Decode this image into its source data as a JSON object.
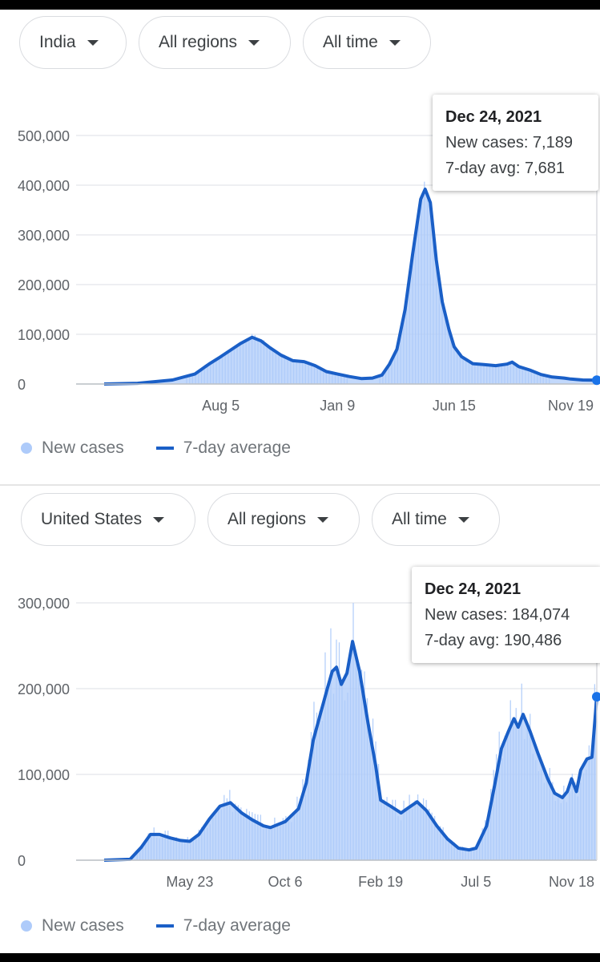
{
  "charts": [
    {
      "filters": {
        "country": "India",
        "region": "All regions",
        "period": "All time"
      },
      "legend": {
        "bars": "New cases",
        "line": "7-day average"
      },
      "tooltip": {
        "date": "Dec 24, 2021",
        "new_cases": "New cases: 7,189",
        "avg": "7-day avg: 7,681"
      }
    },
    {
      "filters": {
        "country": "United States",
        "region": "All regions",
        "period": "All time"
      },
      "legend": {
        "bars": "New cases",
        "line": "7-day average"
      },
      "tooltip": {
        "date": "Dec 24, 2021",
        "new_cases": "New cases: 184,074",
        "avg": "7-day avg: 190,486"
      }
    }
  ],
  "chart_data": [
    {
      "type": "area",
      "title": "",
      "xlabel": "",
      "ylabel": "",
      "ylim": [
        0,
        500000
      ],
      "yticks": [
        0,
        100000,
        200000,
        300000,
        400000,
        500000
      ],
      "ytick_labels": [
        "0",
        "100,000",
        "200,000",
        "300,000",
        "400,000",
        "500,000"
      ],
      "xticks": [
        "2020-08-05",
        "2021-01-09",
        "2021-06-15",
        "2021-11-19"
      ],
      "xtick_labels": [
        "Aug 5",
        "Jan 9",
        "Jun 15",
        "Nov 19"
      ],
      "xlim": [
        "2020-03-01",
        "2021-12-24"
      ],
      "series": [
        {
          "name": "7-day average",
          "color": "#1a5fc7",
          "x": [
            "2020-03-01",
            "2020-04-15",
            "2020-06-01",
            "2020-07-01",
            "2020-07-20",
            "2020-08-05",
            "2020-08-20",
            "2020-09-01",
            "2020-09-16",
            "2020-09-28",
            "2020-10-10",
            "2020-10-25",
            "2020-11-10",
            "2020-11-25",
            "2020-12-10",
            "2020-12-25",
            "2021-01-09",
            "2021-01-25",
            "2021-02-10",
            "2021-02-25",
            "2021-03-10",
            "2021-03-20",
            "2021-03-30",
            "2021-04-10",
            "2021-04-20",
            "2021-05-01",
            "2021-05-07",
            "2021-05-14",
            "2021-05-22",
            "2021-05-30",
            "2021-06-08",
            "2021-06-15",
            "2021-06-25",
            "2021-07-10",
            "2021-07-25",
            "2021-08-10",
            "2021-08-25",
            "2021-09-01",
            "2021-09-10",
            "2021-09-25",
            "2021-10-10",
            "2021-10-25",
            "2021-11-10",
            "2021-11-19",
            "2021-12-05",
            "2021-12-24"
          ],
          "values": [
            0,
            1500,
            8000,
            20000,
            40000,
            55000,
            70000,
            82000,
            94000,
            87000,
            73000,
            58000,
            47000,
            45000,
            37000,
            25000,
            20000,
            15000,
            11000,
            12000,
            18000,
            40000,
            70000,
            150000,
            260000,
            372000,
            392000,
            365000,
            250000,
            165000,
            110000,
            75000,
            55000,
            41000,
            39000,
            37000,
            40000,
            44000,
            35000,
            28000,
            19000,
            14000,
            12000,
            10000,
            8000,
            7681
          ]
        },
        {
          "name": "New cases",
          "color": "#aecbfa"
        }
      ]
    },
    {
      "type": "area",
      "title": "",
      "xlabel": "",
      "ylabel": "",
      "ylim": [
        0,
        300000
      ],
      "yticks": [
        0,
        100000,
        200000,
        300000
      ],
      "ytick_labels": [
        "0",
        "100,000",
        "200,000",
        "300,000"
      ],
      "xticks": [
        "2020-05-23",
        "2020-10-06",
        "2021-02-19",
        "2021-07-05",
        "2021-11-18"
      ],
      "xtick_labels": [
        "May 23",
        "Oct 6",
        "Feb 19",
        "Jul 5",
        "Nov 18"
      ],
      "xlim": [
        "2020-01-22",
        "2021-12-24"
      ],
      "series": [
        {
          "name": "7-day average",
          "color": "#1a5fc7",
          "x": [
            "2020-01-22",
            "2020-02-28",
            "2020-03-15",
            "2020-03-28",
            "2020-04-10",
            "2020-04-25",
            "2020-05-10",
            "2020-05-23",
            "2020-06-05",
            "2020-06-20",
            "2020-07-05",
            "2020-07-20",
            "2020-08-05",
            "2020-08-20",
            "2020-09-05",
            "2020-09-15",
            "2020-10-06",
            "2020-10-25",
            "2020-11-05",
            "2020-11-15",
            "2020-11-25",
            "2020-12-05",
            "2020-12-12",
            "2020-12-18",
            "2020-12-25",
            "2021-01-02",
            "2021-01-10",
            "2021-01-20",
            "2021-02-01",
            "2021-02-12",
            "2021-02-19",
            "2021-03-05",
            "2021-03-20",
            "2021-04-01",
            "2021-04-12",
            "2021-04-25",
            "2021-05-10",
            "2021-05-25",
            "2021-06-10",
            "2021-06-25",
            "2021-07-05",
            "2021-07-20",
            "2021-08-01",
            "2021-08-10",
            "2021-08-20",
            "2021-08-28",
            "2021-09-03",
            "2021-09-10",
            "2021-09-20",
            "2021-10-01",
            "2021-10-15",
            "2021-10-25",
            "2021-11-05",
            "2021-11-12",
            "2021-11-18",
            "2021-11-25",
            "2021-12-01",
            "2021-12-10",
            "2021-12-17",
            "2021-12-24"
          ],
          "values": [
            0,
            1000,
            15000,
            30000,
            30000,
            26000,
            23000,
            22000,
            30000,
            48000,
            63000,
            67000,
            55000,
            47000,
            40000,
            38000,
            45000,
            60000,
            90000,
            140000,
            170000,
            200000,
            220000,
            225000,
            205000,
            218000,
            255000,
            220000,
            160000,
            110000,
            70000,
            63000,
            55000,
            62000,
            68000,
            58000,
            40000,
            25000,
            14000,
            12000,
            14000,
            40000,
            90000,
            130000,
            150000,
            165000,
            155000,
            170000,
            150000,
            125000,
            95000,
            78000,
            73000,
            80000,
            95000,
            80000,
            105000,
            118000,
            120000,
            190486
          ]
        },
        {
          "name": "New cases",
          "color": "#aecbfa"
        }
      ]
    }
  ]
}
